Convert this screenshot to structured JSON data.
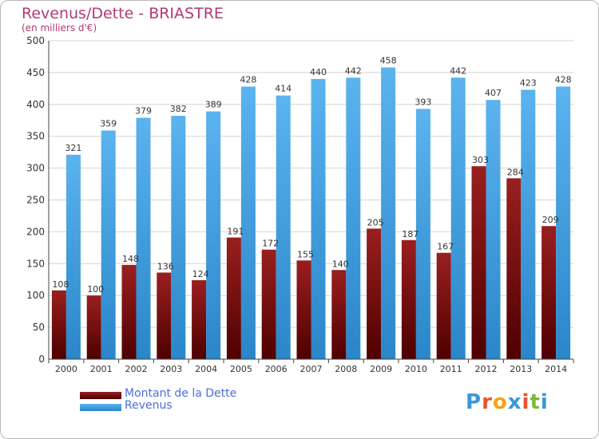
{
  "title": "Revenus/Dette - BRIASTRE",
  "subtitle": "(en milliers d'€)",
  "logo_text": "Proxiti",
  "colors": {
    "title": "#b23a70",
    "dette": "#7a0c0c",
    "revenus": "#3a97d8",
    "legend_text": "#4a6ee0",
    "grid": "#d4d4d4",
    "axis": "#444444"
  },
  "chart_data": {
    "type": "bar",
    "title": "Revenus/Dette - BRIASTRE",
    "ylabel": "(en milliers d'€)",
    "xlabel": "",
    "categories": [
      "2000",
      "2001",
      "2002",
      "2003",
      "2004",
      "2005",
      "2006",
      "2007",
      "2008",
      "2009",
      "2010",
      "2011",
      "2012",
      "2013",
      "2014"
    ],
    "series": [
      {
        "name": "Montant de la Dette",
        "values": [
          108,
          100,
          148,
          136,
          124,
          191,
          172,
          155,
          140,
          205,
          187,
          167,
          303,
          284,
          209
        ]
      },
      {
        "name": "Revenus",
        "values": [
          321,
          359,
          379,
          382,
          389,
          428,
          414,
          440,
          442,
          458,
          393,
          442,
          407,
          423,
          428
        ]
      }
    ],
    "ylim": [
      0,
      500
    ],
    "yticks": [
      0,
      50,
      100,
      150,
      200,
      250,
      300,
      350,
      400,
      450,
      500
    ],
    "grid": true,
    "legend": "bottom-left"
  }
}
